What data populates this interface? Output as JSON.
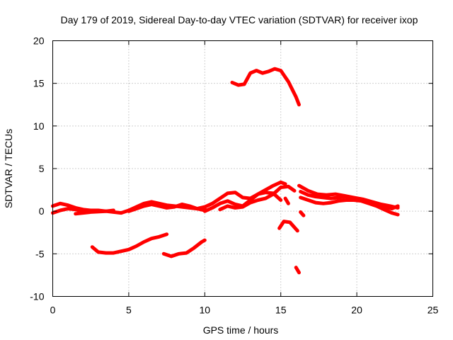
{
  "chart_data": {
    "type": "scatter",
    "title": "Day 179 of 2019, Sidereal Day-to-day VTEC variation (SDTVAR) for receiver ixop",
    "xlabel": "GPS time / hours",
    "ylabel": "SDTVAR / TECUs",
    "xlim": [
      0,
      25
    ],
    "ylim": [
      -10,
      20
    ],
    "xticks": [
      0,
      5,
      10,
      15,
      20,
      25
    ],
    "yticks": [
      -10,
      -5,
      0,
      5,
      10,
      15,
      20
    ],
    "grid": true,
    "color": "#ff0000",
    "series": [
      {
        "name": "s1",
        "x": [
          0,
          0.5,
          1.0,
          1.5,
          2.0,
          2.5,
          3.0,
          3.5,
          4.0
        ],
        "y": [
          0.6,
          0.9,
          0.7,
          0.4,
          0.2,
          0.1,
          0.1,
          0.0,
          0.1
        ]
      },
      {
        "name": "s2",
        "x": [
          0,
          0.5,
          1.0,
          1.5,
          2.0
        ],
        "y": [
          -0.2,
          0.1,
          0.3,
          0.2,
          0.0
        ]
      },
      {
        "name": "s3",
        "x": [
          1.5,
          2.5,
          3.5,
          4.5,
          5.0,
          5.5,
          6.0,
          6.5,
          7.0,
          7.5,
          8.0,
          8.5,
          9.0,
          9.5,
          10.0
        ],
        "y": [
          -0.3,
          -0.1,
          0.0,
          -0.2,
          0.1,
          0.5,
          0.9,
          1.1,
          0.9,
          0.7,
          0.6,
          0.5,
          0.4,
          0.3,
          0.3
        ]
      },
      {
        "name": "s4",
        "x": [
          5.0,
          5.5,
          6.0,
          6.5,
          7.0,
          7.5,
          8.0,
          8.5,
          9.0,
          9.5,
          10.0
        ],
        "y": [
          0.0,
          0.3,
          0.6,
          0.8,
          0.6,
          0.4,
          0.5,
          0.8,
          0.6,
          0.3,
          0.1
        ]
      },
      {
        "name": "s5",
        "x": [
          9.5,
          10.0,
          10.5,
          11.0,
          11.5,
          12.0,
          12.5,
          13.0,
          13.5,
          14.0,
          14.5,
          15.0,
          15.3
        ],
        "y": [
          0.3,
          0.5,
          0.9,
          1.5,
          2.1,
          2.2,
          1.6,
          1.5,
          2.0,
          2.5,
          3.0,
          3.4,
          3.2
        ]
      },
      {
        "name": "s6",
        "x": [
          10.0,
          10.5,
          11.0,
          11.5,
          12.0,
          12.5,
          13.0,
          13.5,
          14.0,
          14.5,
          15.0
        ],
        "y": [
          0.0,
          0.4,
          0.9,
          1.2,
          0.8,
          0.6,
          1.3,
          2.0,
          2.2,
          2.1,
          1.3
        ]
      },
      {
        "name": "s7",
        "x": [
          11.0,
          11.5,
          12.0,
          12.5,
          13.0,
          13.5,
          14.0,
          14.5,
          15.0,
          15.5,
          15.9
        ],
        "y": [
          0.2,
          0.6,
          0.4,
          0.5,
          1.0,
          1.3,
          1.5,
          2.0,
          2.8,
          2.9,
          2.4
        ]
      },
      {
        "name": "s8",
        "x": [
          15.3,
          15.5
        ],
        "y": [
          1.5,
          0.9
        ]
      },
      {
        "name": "s9",
        "x": [
          2.6,
          3.0,
          3.5,
          4.0,
          4.5,
          5.0,
          5.5,
          6.0,
          6.5,
          7.0,
          7.5
        ],
        "y": [
          -4.2,
          -4.8,
          -4.9,
          -4.9,
          -4.7,
          -4.5,
          -4.1,
          -3.6,
          -3.2,
          -3.0,
          -2.7
        ]
      },
      {
        "name": "s10",
        "x": [
          7.3,
          7.8,
          8.3,
          8.8,
          9.3,
          9.8,
          10.0
        ],
        "y": [
          -5.0,
          -5.3,
          -5.0,
          -4.9,
          -4.3,
          -3.6,
          -3.4
        ]
      },
      {
        "name": "s11",
        "x": [
          11.8,
          12.2,
          12.6,
          13.0,
          13.4,
          13.8,
          14.2,
          14.6,
          15.0,
          15.5,
          16.0,
          16.2
        ],
        "y": [
          15.1,
          14.8,
          14.9,
          16.2,
          16.5,
          16.2,
          16.4,
          16.7,
          16.5,
          15.2,
          13.4,
          12.5
        ]
      },
      {
        "name": "s12",
        "x": [
          14.9,
          15.2,
          15.6,
          16.1
        ],
        "y": [
          -2.0,
          -1.2,
          -1.3,
          -2.3
        ]
      },
      {
        "name": "s13",
        "x": [
          16.0,
          16.2
        ],
        "y": [
          -6.6,
          -7.2
        ]
      },
      {
        "name": "s14",
        "x": [
          16.3,
          16.5
        ],
        "y": [
          -0.1,
          -0.5
        ]
      },
      {
        "name": "s15",
        "x": [
          16.3,
          16.8,
          17.3,
          17.8,
          18.3,
          18.8,
          19.3,
          19.8,
          20.3,
          20.8,
          21.3,
          21.8,
          22.3,
          22.7
        ],
        "y": [
          2.3,
          1.9,
          1.7,
          1.6,
          1.5,
          1.6,
          1.7,
          1.5,
          1.3,
          1.0,
          0.7,
          0.5,
          0.3,
          0.6
        ]
      },
      {
        "name": "s16",
        "x": [
          16.3,
          16.8,
          17.3,
          17.8,
          18.3,
          18.8,
          19.3,
          19.8,
          20.3,
          20.8,
          21.3,
          21.8,
          22.3,
          22.7
        ],
        "y": [
          1.6,
          1.3,
          1.0,
          0.9,
          1.0,
          1.2,
          1.3,
          1.3,
          1.2,
          0.9,
          0.6,
          0.2,
          -0.2,
          -0.4
        ]
      },
      {
        "name": "s17",
        "x": [
          16.2,
          16.8,
          17.4,
          18.0,
          18.6,
          19.2,
          19.8,
          20.4,
          21.0,
          21.6,
          22.2,
          22.7
        ],
        "y": [
          3.0,
          2.4,
          2.0,
          1.9,
          2.0,
          1.8,
          1.6,
          1.4,
          1.1,
          0.8,
          0.6,
          0.4
        ]
      }
    ]
  }
}
